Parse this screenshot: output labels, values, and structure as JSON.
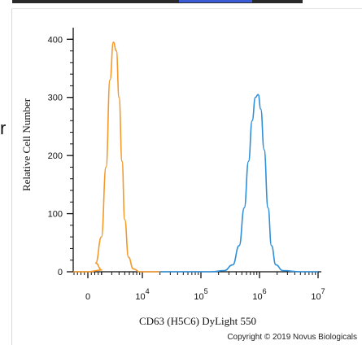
{
  "page": {
    "left_fragment": "r",
    "copyright": "Copyright © 2019 Novus Biologicals"
  },
  "chart_data": {
    "type": "line",
    "title": "",
    "xlabel": "CD63 (H5C6) DyLight 550",
    "ylabel": "Relative Cell Number",
    "x_scale": "biexponential",
    "x_ticks": [
      {
        "value": 0,
        "base": "0",
        "exp": ""
      },
      {
        "value": 10000,
        "base": "10",
        "exp": "4"
      },
      {
        "value": 100000,
        "base": "10",
        "exp": "5"
      },
      {
        "value": 1000000,
        "base": "10",
        "exp": "6"
      },
      {
        "value": 10000000,
        "base": "10",
        "exp": "7"
      }
    ],
    "y_ticks": [
      "0",
      "100",
      "200",
      "300",
      "400"
    ],
    "ylim": [
      0,
      420
    ],
    "grid": false,
    "series": [
      {
        "color": "#f39a2b",
        "points": [
          [
            -2000,
            0
          ],
          [
            0,
            0
          ],
          [
            1000,
            3
          ],
          [
            1600,
            15
          ],
          [
            2000,
            60
          ],
          [
            2400,
            180
          ],
          [
            2800,
            330
          ],
          [
            3200,
            395
          ],
          [
            3600,
            380
          ],
          [
            4000,
            300
          ],
          [
            4500,
            190
          ],
          [
            5000,
            90
          ],
          [
            5800,
            25
          ],
          [
            7000,
            5
          ],
          [
            9000,
            0
          ],
          [
            20000,
            0
          ]
        ]
      },
      {
        "color": "#2f8fd8",
        "points": [
          [
            20000,
            0
          ],
          [
            150000,
            0
          ],
          [
            250000,
            2
          ],
          [
            350000,
            12
          ],
          [
            450000,
            45
          ],
          [
            550000,
            110
          ],
          [
            650000,
            190
          ],
          [
            750000,
            260
          ],
          [
            850000,
            300
          ],
          [
            950000,
            305
          ],
          [
            1050000,
            280
          ],
          [
            1200000,
            210
          ],
          [
            1400000,
            110
          ],
          [
            1600000,
            45
          ],
          [
            1900000,
            12
          ],
          [
            2500000,
            2
          ],
          [
            5000000,
            0
          ],
          [
            10000000,
            0
          ]
        ]
      }
    ]
  }
}
